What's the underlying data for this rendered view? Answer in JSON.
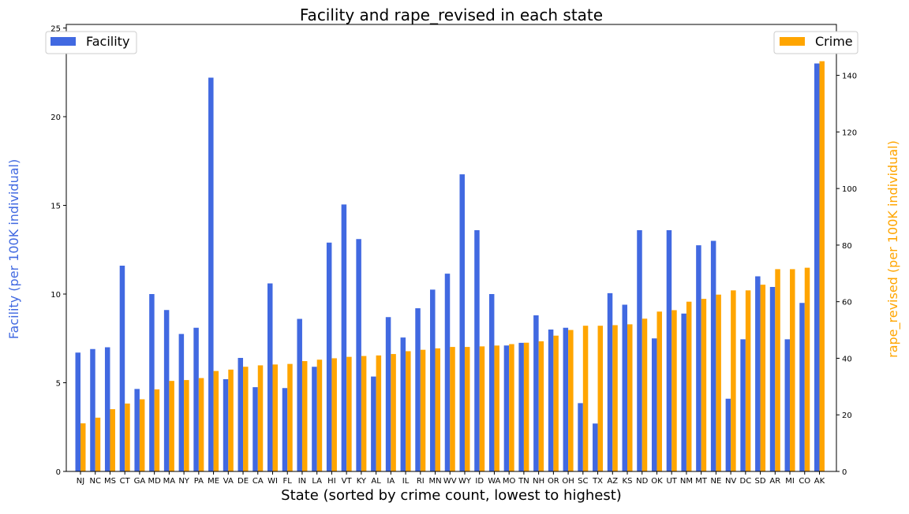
{
  "chart_data": {
    "type": "bar",
    "title": "Facility and rape_revised in each state",
    "xlabel": "State (sorted by crime count, lowest to highest)",
    "ylabel_left": "Facility (per 100K individual)",
    "ylabel_right": "rape_revised (per 100K individual)",
    "ylim_left": [
      0,
      25.2
    ],
    "ylim_right": [
      0,
      158
    ],
    "yticks_left": [
      0,
      5,
      10,
      15,
      20,
      25
    ],
    "yticks_right": [
      0,
      20,
      40,
      60,
      80,
      100,
      120,
      140
    ],
    "legend_left_position": "top-left",
    "legend_right_position": "top-right",
    "categories": [
      "NJ",
      "NC",
      "MS",
      "CT",
      "GA",
      "MD",
      "MA",
      "NY",
      "PA",
      "ME",
      "VA",
      "DE",
      "CA",
      "WI",
      "FL",
      "IN",
      "LA",
      "HI",
      "VT",
      "KY",
      "AL",
      "IA",
      "IL",
      "RI",
      "MN",
      "WV",
      "WY",
      "ID",
      "WA",
      "MO",
      "TN",
      "NH",
      "OR",
      "OH",
      "SC",
      "TX",
      "AZ",
      "KS",
      "ND",
      "OK",
      "UT",
      "NM",
      "MT",
      "NE",
      "NV",
      "DC",
      "SD",
      "AR",
      "MI",
      "CO",
      "AK"
    ],
    "series": [
      {
        "name": "Facility",
        "axis": "left",
        "color": "#4169E1",
        "values": [
          6.7,
          6.9,
          7.0,
          11.6,
          4.65,
          10.0,
          9.1,
          7.75,
          8.1,
          22.2,
          5.2,
          6.4,
          4.75,
          10.6,
          4.7,
          8.6,
          5.9,
          12.9,
          15.05,
          13.1,
          5.35,
          8.7,
          7.55,
          9.2,
          10.25,
          11.15,
          16.75,
          13.6,
          10.0,
          7.1,
          7.25,
          8.8,
          8.0,
          8.1,
          3.85,
          2.7,
          10.05,
          9.4,
          13.6,
          7.5,
          13.6,
          8.9,
          12.75,
          13.0,
          4.1,
          7.45,
          11.0,
          10.4,
          7.45,
          9.5,
          23.0
        ]
      },
      {
        "name": "Crime",
        "axis": "right",
        "color": "#FFA500",
        "values": [
          17,
          19,
          22,
          24,
          25.5,
          29,
          32,
          32.3,
          33,
          35.5,
          36,
          37,
          37.5,
          37.8,
          38,
          39,
          39.5,
          40,
          40.5,
          40.8,
          41,
          41.5,
          42.5,
          43,
          43.5,
          44,
          44,
          44.2,
          44.5,
          45,
          45.5,
          46,
          48,
          50,
          51.5,
          51.5,
          51.7,
          52,
          54,
          56.5,
          57,
          60,
          61,
          62.5,
          64,
          64,
          66,
          71.5,
          71.5,
          72,
          145
        ]
      }
    ]
  }
}
